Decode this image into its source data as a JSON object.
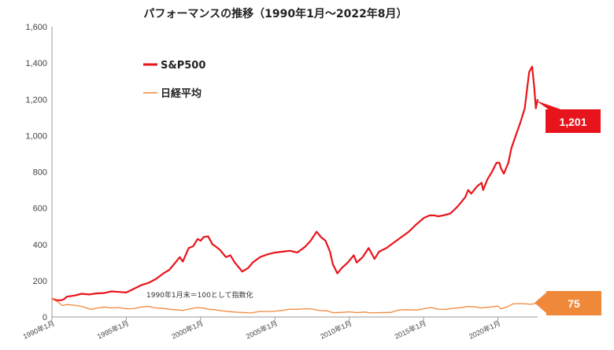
{
  "chart_data": {
    "type": "line",
    "title": "パフォーマンスの推移（1990年1月〜2022年8月）",
    "ylim": [
      0,
      1600
    ],
    "y_ticks": [
      "0",
      "200",
      "400",
      "600",
      "800",
      "1,000",
      "1,200",
      "1,400",
      "1,600"
    ],
    "x_range": [
      1990.0,
      2022.67
    ],
    "x_ticks": [
      {
        "label": "1990年1月",
        "year": 1990.0
      },
      {
        "label": "1995年1月",
        "year": 1995.0
      },
      {
        "label": "2000年1月",
        "year": 2000.0
      },
      {
        "label": "2005年1月",
        "year": 2005.0
      },
      {
        "label": "2010年1月",
        "year": 2010.0
      },
      {
        "label": "2015年1月",
        "year": 2015.0
      },
      {
        "label": "2020年1月",
        "year": 2020.0
      }
    ],
    "note": "1990年1月末＝100として指数化",
    "series": [
      {
        "name": "S&P500",
        "color": "#e8141b",
        "x": [
          1990.0,
          1990.3,
          1990.6,
          1990.8,
          1991.0,
          1991.5,
          1992.0,
          1992.5,
          1993.0,
          1993.5,
          1994.0,
          1994.5,
          1995.0,
          1995.5,
          1996.0,
          1996.5,
          1997.0,
          1997.5,
          1997.9,
          1998.3,
          1998.6,
          1998.8,
          1999.2,
          1999.5,
          1999.8,
          2000.0,
          2000.2,
          2000.5,
          2000.8,
          2001.0,
          2001.3,
          2001.7,
          2002.0,
          2002.3,
          2002.6,
          2002.8,
          2003.2,
          2003.5,
          2004.0,
          2004.5,
          2005.0,
          2005.5,
          2006.0,
          2006.5,
          2007.0,
          2007.4,
          2007.8,
          2008.1,
          2008.4,
          2008.7,
          2008.9,
          2009.2,
          2009.5,
          2009.9,
          2010.3,
          2010.5,
          2010.9,
          2011.3,
          2011.7,
          2012.0,
          2012.5,
          2013.0,
          2013.5,
          2014.0,
          2014.5,
          2015.0,
          2015.4,
          2015.7,
          2016.0,
          2016.3,
          2016.8,
          2017.3,
          2017.8,
          2018.0,
          2018.2,
          2018.6,
          2018.9,
          2019.0,
          2019.3,
          2019.6,
          2019.9,
          2020.1,
          2020.2,
          2020.4,
          2020.7,
          2020.9,
          2021.2,
          2021.5,
          2021.8,
          2021.95,
          2022.1,
          2022.3,
          2022.45,
          2022.55,
          2022.67
        ],
        "values": [
          100,
          93,
          92,
          97,
          112,
          118,
          128,
          124,
          130,
          132,
          141,
          138,
          135,
          155,
          175,
          188,
          210,
          240,
          260,
          300,
          330,
          305,
          380,
          390,
          430,
          420,
          440,
          445,
          400,
          390,
          370,
          330,
          340,
          300,
          270,
          250,
          270,
          300,
          330,
          345,
          355,
          360,
          365,
          355,
          385,
          420,
          470,
          440,
          420,
          360,
          290,
          240,
          270,
          300,
          340,
          300,
          330,
          380,
          320,
          360,
          380,
          410,
          440,
          470,
          510,
          545,
          560,
          560,
          555,
          560,
          570,
          610,
          660,
          700,
          680,
          720,
          740,
          700,
          760,
          800,
          850,
          850,
          820,
          790,
          850,
          930,
          1000,
          1070,
          1150,
          1250,
          1350,
          1380,
          1260,
          1150,
          1201
        ]
      },
      {
        "name": "日経平均",
        "color": "#f0883a",
        "x": [
          1990.0,
          1990.4,
          1990.7,
          1991.0,
          1991.5,
          1992.0,
          1992.6,
          1993.0,
          1993.5,
          1994.0,
          1994.5,
          1995.0,
          1995.5,
          1996.0,
          1996.5,
          1997.0,
          1997.5,
          1998.0,
          1998.8,
          1999.3,
          1999.8,
          2000.2,
          2000.6,
          2001.0,
          2001.5,
          2002.0,
          2002.5,
          2003.0,
          2003.4,
          2004.0,
          2004.5,
          2005.0,
          2005.5,
          2006.0,
          2006.5,
          2007.0,
          2007.5,
          2008.0,
          2008.5,
          2008.9,
          2009.5,
          2010.0,
          2010.5,
          2011.0,
          2011.5,
          2012.0,
          2012.8,
          2013.3,
          2013.8,
          2014.5,
          2015.0,
          2015.5,
          2016.0,
          2016.5,
          2017.0,
          2017.5,
          2018.0,
          2018.5,
          2018.9,
          2019.5,
          2020.0,
          2020.2,
          2020.6,
          2021.0,
          2021.5,
          2021.9,
          2022.2,
          2022.5,
          2022.67
        ],
        "values": [
          100,
          82,
          63,
          68,
          65,
          58,
          42,
          48,
          55,
          50,
          52,
          45,
          46,
          55,
          58,
          50,
          47,
          42,
          36,
          45,
          52,
          48,
          42,
          40,
          33,
          29,
          26,
          24,
          22,
          31,
          30,
          32,
          36,
          43,
          42,
          45,
          44,
          35,
          34,
          24,
          25,
          28,
          24,
          27,
          22,
          24,
          25,
          38,
          40,
          38,
          45,
          52,
          43,
          42,
          48,
          51,
          58,
          55,
          50,
          55,
          60,
          45,
          55,
          72,
          74,
          72,
          70,
          74,
          75
        ]
      }
    ]
  },
  "legend": {
    "sp500_label": "S&P500",
    "nikkei_label": "日経平均"
  },
  "callouts": {
    "sp500_value": "1,201",
    "sp500_color": "#e8141b",
    "nikkei_value": "75",
    "nikkei_color": "#f0883a"
  }
}
